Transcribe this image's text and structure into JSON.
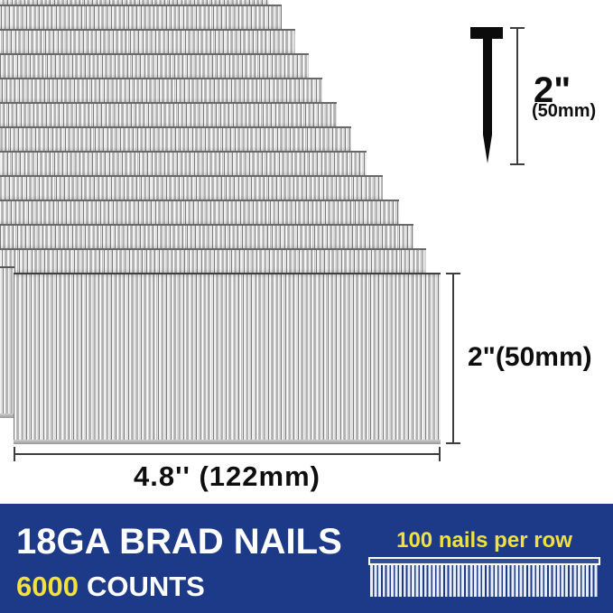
{
  "annotations": {
    "nail_length_in": "2\"",
    "nail_length_mm": "(50mm)",
    "strip_height": "2\"(50mm)",
    "strip_width": "4.8'' (122mm)"
  },
  "banner": {
    "title": "18GA BRAD NAILS",
    "count_value": "6000",
    "count_unit": "COUNTS",
    "nails_per_row": "100 nails per row"
  },
  "icons": {
    "single_nail": "brad-nail-icon",
    "mini_strip": "nail-strip-icon"
  },
  "colors": {
    "banner_bg": "#1c3a87",
    "accent_yellow": "#f2e13c",
    "nail_black": "#0b0b0b",
    "strip_gray": "#d9d9d9"
  }
}
